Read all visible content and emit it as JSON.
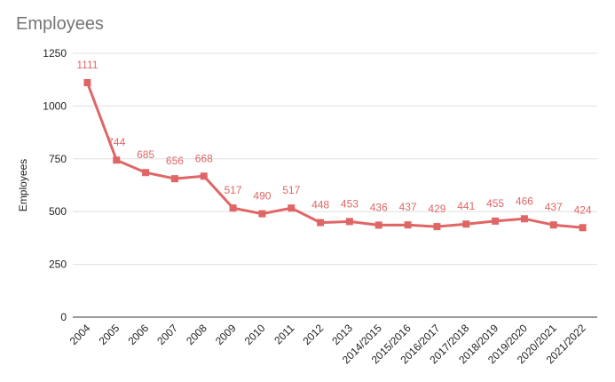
{
  "chart_data": {
    "type": "line",
    "title": "Employees",
    "xlabel": "",
    "ylabel": "Employees",
    "categories": [
      "2004",
      "2005",
      "2006",
      "2007",
      "2008",
      "2009",
      "2010",
      "2011",
      "2012",
      "2013",
      "2014/2015",
      "2015/2016",
      "2016/2017",
      "2017/2018",
      "2018/2019",
      "2019/2020",
      "2020/2021",
      "2021/2022"
    ],
    "series": [
      {
        "values": [
          1111,
          744,
          685,
          656,
          668,
          517,
          490,
          517,
          448,
          453,
          436,
          437,
          429,
          441,
          455,
          466,
          437,
          424
        ]
      }
    ],
    "ylim": [
      0,
      1250
    ],
    "yticks": [
      0,
      250,
      500,
      750,
      1000,
      1250
    ],
    "grid": true,
    "legend": "none",
    "data_labels": true,
    "marker": "square",
    "colors": {
      "series": "#e06666",
      "grid": "#e0e0e0",
      "axis": "#333333",
      "title": "#757575"
    }
  }
}
